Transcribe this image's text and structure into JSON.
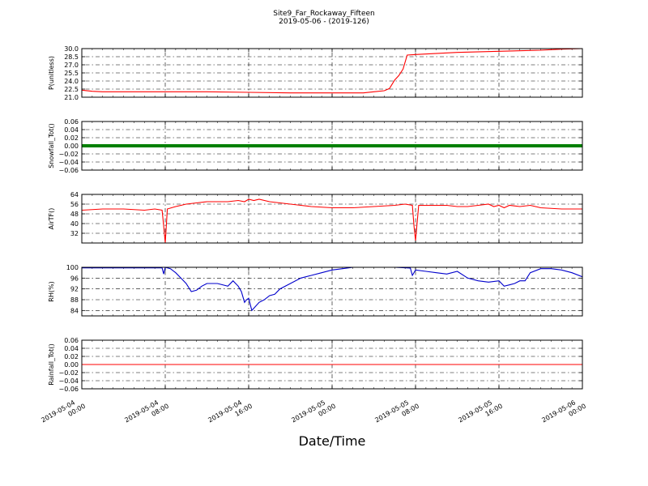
{
  "title": "Site9_Far_Rockaway_Fifteen",
  "subtitle": "2019-05-06 - (2019-126)",
  "xlabel": "Date/Time",
  "x_ticks": [
    {
      "l1": "2019-05-04",
      "l2": "00:00"
    },
    {
      "l1": "2019-05-04",
      "l2": "08:00"
    },
    {
      "l1": "2019-05-04",
      "l2": "16:00"
    },
    {
      "l1": "2019-05-05",
      "l2": "00:00"
    },
    {
      "l1": "2019-05-05",
      "l2": "08:00"
    },
    {
      "l1": "2019-05-05",
      "l2": "16:00"
    },
    {
      "l1": "2019-05-06",
      "l2": "00:00"
    }
  ],
  "chart_data": [
    {
      "type": "line",
      "ylabel": "P(unitless)",
      "ylim": [
        21.0,
        30.0
      ],
      "yticks": [
        "21.0",
        "22.5",
        "24.0",
        "25.5",
        "27.0",
        "28.5",
        "30.0"
      ],
      "xlim": [
        "2019-05-04 00:00",
        "2019-05-06 00:00"
      ],
      "grid": true,
      "color": "#ff0000",
      "series": [
        {
          "x_hours": [
            0,
            1,
            2,
            4,
            8,
            12,
            16,
            20,
            24,
            26,
            27,
            28,
            29,
            29.5,
            30,
            30.4,
            30.8,
            31.2,
            32,
            36,
            40,
            44,
            46,
            47,
            48
          ],
          "values": [
            22.3,
            22.1,
            22.0,
            22.0,
            22.0,
            22.0,
            21.9,
            21.8,
            21.8,
            21.8,
            21.8,
            22.0,
            22.2,
            22.6,
            24.2,
            25.0,
            26.2,
            28.8,
            28.9,
            29.3,
            29.5,
            29.7,
            29.9,
            29.95,
            30.0
          ]
        }
      ]
    },
    {
      "type": "line",
      "ylabel": "Snowfall_Tot()",
      "ylim": [
        -0.06,
        0.06
      ],
      "yticks": [
        "−0.06",
        "−0.04",
        "−0.02",
        "0.00",
        "0.02",
        "0.04",
        "0.06"
      ],
      "grid": true,
      "color": "#008000",
      "series": [
        {
          "x_hours": [
            0,
            48
          ],
          "values": [
            0.0,
            0.0
          ]
        }
      ]
    },
    {
      "type": "line",
      "ylabel": "AirTF()",
      "ylim": [
        24,
        64
      ],
      "yticks": [
        "32",
        "40",
        "48",
        "56",
        "64"
      ],
      "grid": true,
      "color": "#ff0000",
      "series": [
        {
          "x_hours": [
            0,
            2,
            4,
            6,
            7,
            7.7,
            7.85,
            8,
            8.2,
            9,
            10,
            11,
            12,
            13,
            14,
            15,
            15.6,
            16,
            16.5,
            17,
            18,
            19,
            20,
            21,
            22,
            24,
            26,
            28,
            30,
            31,
            31.7,
            31.85,
            32,
            32.3,
            33,
            34,
            35,
            36,
            37,
            38,
            39,
            39.5,
            40,
            40.5,
            41,
            42,
            43,
            44,
            46,
            48
          ],
          "values": [
            51,
            52,
            52,
            51,
            52,
            51,
            38,
            24,
            52,
            54,
            56,
            57,
            58,
            58,
            58,
            59,
            58,
            60,
            59,
            60,
            58,
            57,
            56,
            55,
            54,
            53,
            53,
            54,
            55,
            56,
            55,
            38,
            26,
            55,
            55,
            55,
            55,
            54,
            54,
            55,
            56,
            54,
            55,
            53,
            55,
            54,
            55,
            53,
            52,
            52
          ]
        }
      ]
    },
    {
      "type": "line",
      "ylabel": "RH(%)",
      "ylim": [
        82,
        100
      ],
      "yticks": [
        "84",
        "88",
        "92",
        "96",
        "100"
      ],
      "grid": true,
      "color": "#0000cc",
      "series": [
        {
          "x_hours": [
            0,
            7.7,
            7.85,
            8,
            8.5,
            9,
            9.5,
            10,
            10.5,
            11,
            11.5,
            12,
            13,
            14,
            14.5,
            15,
            15.3,
            15.6,
            15.8,
            16,
            16.3,
            17,
            17.5,
            18,
            18.5,
            19,
            20,
            21,
            22,
            23,
            24,
            25,
            26,
            28,
            30,
            31.5,
            31.7,
            32,
            33,
            34,
            35,
            36,
            37,
            38,
            39,
            40,
            40.5,
            41,
            41.5,
            42,
            42.5,
            43,
            44,
            45,
            46,
            47,
            48
          ],
          "values": [
            99.8,
            99.8,
            97.5,
            100,
            99.5,
            98,
            96,
            94,
            91,
            91.5,
            93,
            94,
            94,
            93,
            95,
            93,
            91,
            87,
            88,
            88.5,
            84,
            87,
            88,
            89.5,
            90,
            92,
            94,
            96,
            97,
            98,
            99,
            99.5,
            100,
            100,
            100,
            99.7,
            97,
            99,
            98.5,
            98,
            97.5,
            98.5,
            96,
            95,
            94.5,
            95,
            93,
            93.5,
            94,
            95,
            95,
            98,
            99.5,
            99.5,
            99,
            98,
            96.5
          ]
        }
      ]
    },
    {
      "type": "line",
      "ylabel": "Rainfall_Tot()",
      "ylim": [
        -0.06,
        0.06
      ],
      "yticks": [
        "−0.06",
        "−0.04",
        "−0.02",
        "0.00",
        "0.02",
        "0.04",
        "0.06"
      ],
      "grid": true,
      "color": "#ff0000",
      "series": [
        {
          "x_hours": [
            0,
            48
          ],
          "values": [
            0.0,
            0.0
          ]
        }
      ]
    }
  ]
}
